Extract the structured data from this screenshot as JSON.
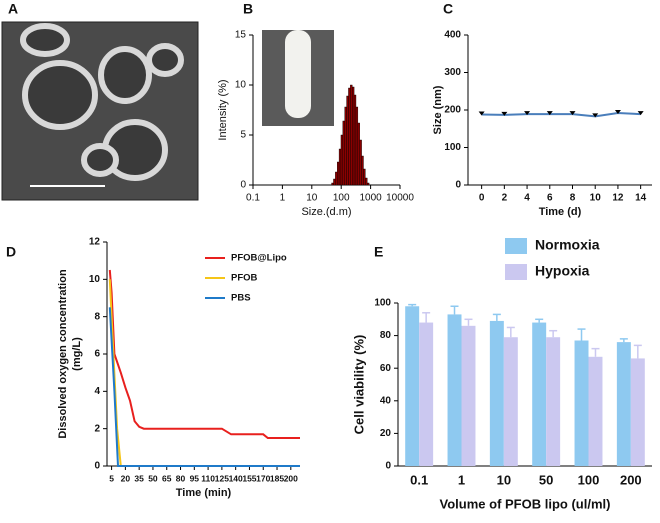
{
  "chart_data": [
    {
      "type": "image",
      "label": "A"
    },
    {
      "type": "bar",
      "label": "B",
      "xscale": "log",
      "color": "#8b0000",
      "xlabel": "Size.(d.m)",
      "ylabel": "Intensity (%)",
      "x": [
        50.7,
        58.8,
        68.1,
        78.8,
        91.3,
        105.7,
        122.4,
        141.8,
        164.2,
        190.1,
        220.2,
        255.0,
        295.3,
        342.0,
        396.1,
        458.7,
        531.2,
        615.1,
        712.4,
        825.0
      ],
      "values": [
        0.2,
        0.6,
        1.3,
        2.3,
        3.6,
        5.0,
        6.4,
        7.8,
        8.9,
        9.7,
        10.0,
        9.8,
        9.0,
        7.8,
        6.2,
        4.5,
        2.9,
        1.6,
        0.7,
        0.2
      ],
      "xlim": [
        0.1,
        10000
      ],
      "xticks": [
        0.1,
        1,
        10,
        100,
        1000,
        10000
      ],
      "ylim": [
        0,
        15
      ],
      "yticks": [
        0,
        5,
        10,
        15
      ]
    },
    {
      "type": "line",
      "label": "C",
      "xlabel": "Time (d)",
      "ylabel": "Size (nm)",
      "x": [
        0,
        2,
        4,
        6,
        8,
        10,
        12,
        14
      ],
      "series": [
        {
          "color": "#4a7ebb",
          "values": [
            188,
            187,
            189,
            189,
            189,
            183,
            192,
            189
          ],
          "errors": [
            4,
            3,
            4,
            4,
            4,
            5,
            5,
            4
          ]
        }
      ],
      "xlim": [
        -1.2,
        15
      ],
      "xticks": [
        0,
        2,
        4,
        6,
        8,
        10,
        12,
        14
      ],
      "ylim": [
        0,
        400
      ],
      "yticks": [
        0,
        100,
        200,
        300,
        400
      ]
    },
    {
      "type": "line",
      "label": "D",
      "xlabel": "Time  (min)",
      "ylabel": [
        "Dissolved oxygen concentration",
        "(mg/L)"
      ],
      "legend": "upper right",
      "series": [
        {
          "name": "PFOB@Lipo",
          "color": "#e8201e",
          "x": [
            3,
            5,
            8,
            15,
            20,
            25,
            30,
            35,
            40,
            125,
            135,
            170,
            175,
            210
          ],
          "values": [
            10.5,
            9.3,
            6.0,
            5.0,
            4.2,
            3.5,
            2.4,
            2.1,
            2.0,
            2.0,
            1.7,
            1.7,
            1.5,
            1.5
          ]
        },
        {
          "name": "PFOB",
          "color": "#f5c518",
          "x": [
            3,
            7,
            11,
            15
          ],
          "values": [
            10.0,
            6.0,
            2.0,
            0
          ]
        },
        {
          "name": "PBS",
          "color": "#1f7ac9",
          "x": [
            3,
            8,
            12,
            210
          ],
          "values": [
            8.5,
            4.0,
            0,
            0
          ]
        }
      ],
      "xlim": [
        0,
        210
      ],
      "xticks": [
        5,
        20,
        35,
        50,
        65,
        80,
        95,
        110,
        125,
        140,
        155,
        170,
        185,
        200
      ],
      "ylim": [
        0,
        12
      ],
      "yticks": [
        0,
        2,
        4,
        6,
        8,
        10,
        12
      ]
    },
    {
      "type": "bar",
      "label": "E",
      "xlabel": "Volume of PFOB lipo (ul/ml)",
      "ylabel": "Cell viability (%)",
      "legend": "top",
      "categories": [
        "0.1",
        "1",
        "10",
        "50",
        "100",
        "200"
      ],
      "series": [
        {
          "name": "Normoxia",
          "color": "#8ec9f0",
          "values": [
            98,
            93,
            89,
            88,
            77,
            76
          ],
          "errors": [
            1,
            5,
            4,
            2,
            7,
            2
          ]
        },
        {
          "name": "Hypoxia",
          "color": "#cbc8f0",
          "values": [
            88,
            86,
            79,
            79,
            67,
            66
          ],
          "errors": [
            6,
            4,
            6,
            4,
            5,
            8
          ]
        }
      ],
      "ylim": [
        0,
        100
      ],
      "yticks": [
        0,
        20,
        40,
        60,
        80,
        100
      ]
    }
  ]
}
